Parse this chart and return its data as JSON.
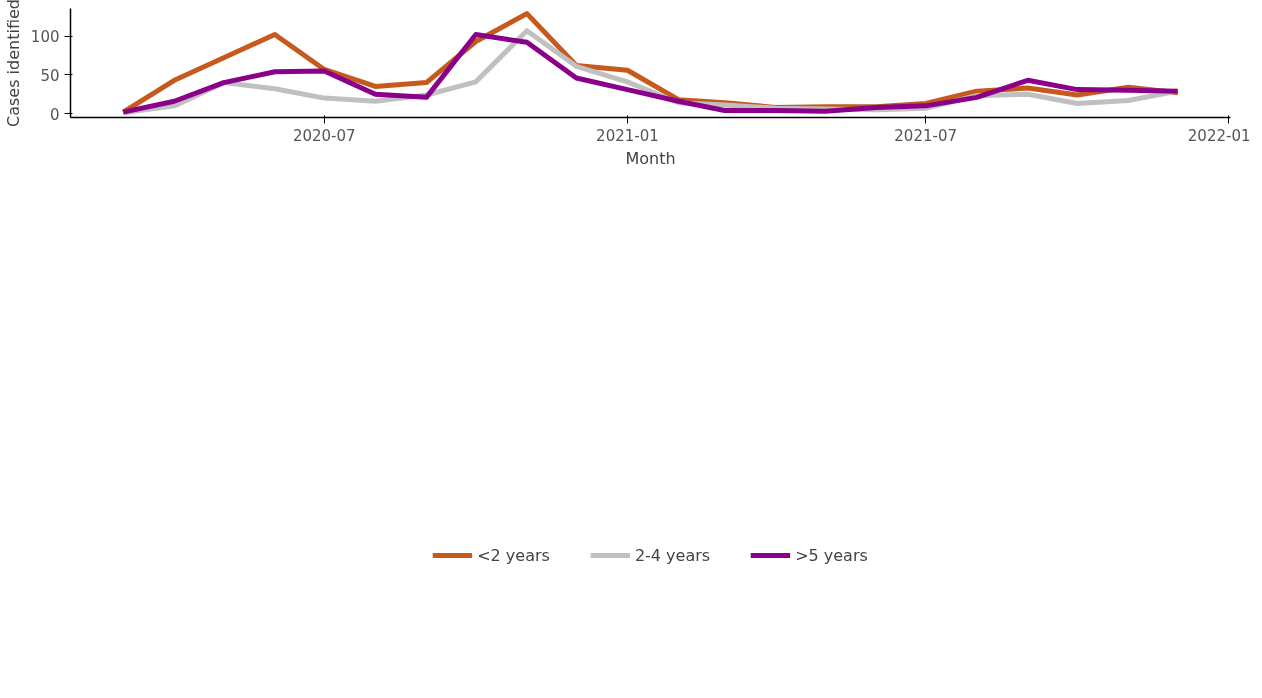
{
  "chart_data": {
    "type": "line",
    "xlabel": "Month",
    "ylabel": "Cases identified",
    "x": [
      "2020-03",
      "2020-04",
      "2020-05",
      "2020-06",
      "2020-07",
      "2020-08",
      "2020-09",
      "2020-10",
      "2020-11",
      "2020-12",
      "2021-01",
      "2021-02",
      "2021-03",
      "2021-04",
      "2021-05",
      "2021-06",
      "2021-07",
      "2021-08",
      "2021-09",
      "2021-10",
      "2021-11",
      "2021-12"
    ],
    "series": [
      {
        "name": "<2 years",
        "color": "#c55a1c",
        "values": [
          2,
          43,
          72,
          102,
          57,
          35,
          40,
          93,
          129,
          62,
          56,
          18,
          14,
          8,
          9,
          9,
          13,
          29,
          33,
          24,
          34,
          27
        ]
      },
      {
        "name": "2-4 years",
        "color": "#c0c0c0",
        "values": [
          1,
          10,
          40,
          32,
          20,
          16,
          24,
          41,
          107,
          61,
          41,
          14,
          11,
          7,
          6,
          5,
          7,
          23,
          25,
          13,
          17,
          29
        ]
      },
      {
        "name": ">5 years",
        "color": "#8b008b",
        "values": [
          2,
          16,
          40,
          54,
          55,
          25,
          21,
          102,
          92,
          46,
          31,
          16,
          4,
          4,
          3,
          8,
          10,
          21,
          43,
          31,
          30,
          29
        ]
      }
    ],
    "xlim": [
      "2020-01-29",
      "2022-01-02"
    ],
    "xticks": [
      "2020-07",
      "2021-01",
      "2021-07",
      "2022-01"
    ],
    "ylim": [
      -5,
      135.6
    ],
    "yticks": [
      0,
      50,
      100
    ],
    "grid": false,
    "legend": "bottom",
    "line_style": "solid",
    "marker": "none"
  }
}
